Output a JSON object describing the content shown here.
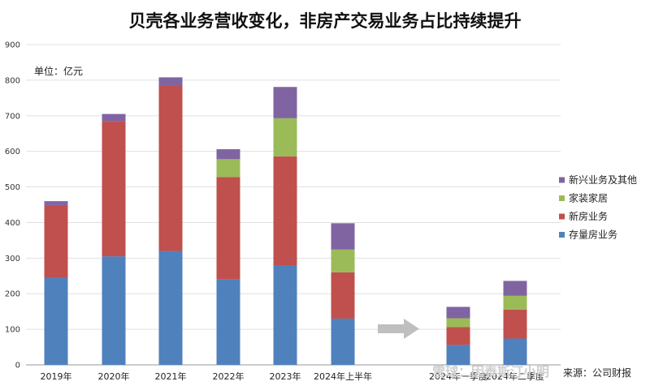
{
  "chart_data": {
    "type": "bar",
    "stacked": true,
    "title": "贝壳各业务营收变化，非房产交易业务占比持续提升",
    "unit_label": "单位：亿元",
    "ylim": [
      0,
      900
    ],
    "yticks": [
      0,
      100,
      200,
      300,
      400,
      500,
      600,
      700,
      800,
      900
    ],
    "grid": true,
    "legend_position": "right",
    "categories": [
      "2019年",
      "2020年",
      "2021年",
      "2022年",
      "2023年",
      "2024年上半年",
      "2024年一季度",
      "2024年二季度"
    ],
    "series": [
      {
        "name": "存量房业务",
        "color": "#4F81BD",
        "values": [
          245,
          305,
          320,
          240,
          279,
          130,
          56,
          74
        ]
      },
      {
        "name": "新房业务",
        "color": "#C0504D",
        "values": [
          204,
          380,
          465,
          288,
          307,
          130,
          50,
          81
        ]
      },
      {
        "name": "家装家居",
        "color": "#9BBB59",
        "values": [
          0,
          0,
          0,
          50,
          107,
          64,
          25,
          39
        ]
      },
      {
        "name": "新兴业务及其他",
        "color": "#8064A2",
        "values": [
          11,
          20,
          23,
          28,
          88,
          74,
          32,
          42
        ]
      }
    ],
    "source": "来源：公司财报",
    "watermark": "雪球：因泰斯汀小明"
  }
}
